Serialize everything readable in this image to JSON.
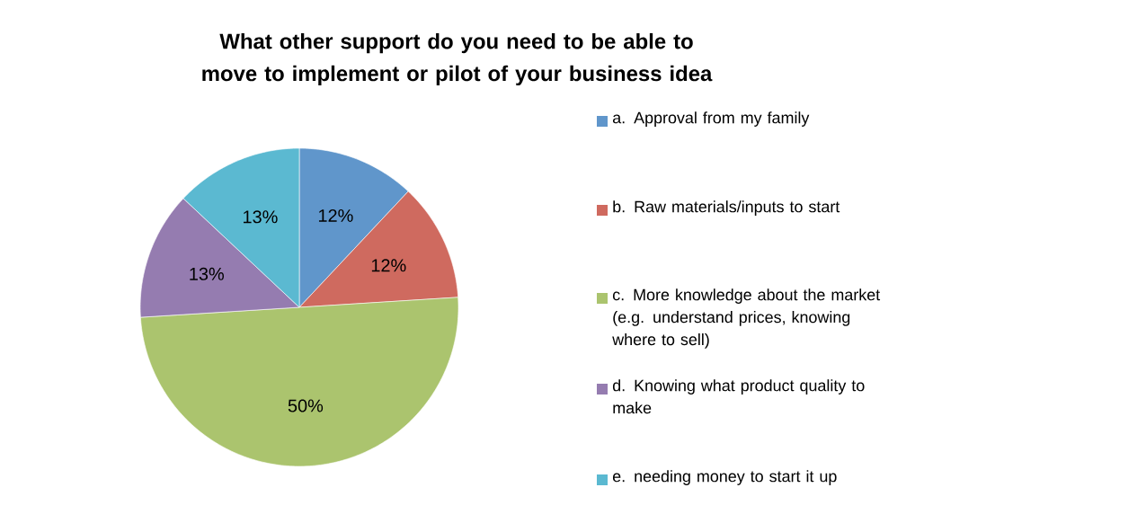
{
  "chart_data": {
    "type": "pie",
    "title": "What other support do you need to be able to move to implement or pilot of your business idea",
    "categories": [
      "a. Approval from my family",
      "b. Raw materials/inputs to start",
      "c. More knowledge about the market (e.g. understand prices, knowing where to sell)",
      "d. Knowing what product quality to make",
      "e. needing money to start it up"
    ],
    "values": [
      12,
      12,
      50,
      13,
      13
    ],
    "value_labels": [
      "12%",
      "12%",
      "50%",
      "13%",
      "13%"
    ],
    "colors": [
      "#6096CB",
      "#CF6A5F",
      "#ABC46E",
      "#957CB0",
      "#5BB9D1"
    ],
    "legend": "right"
  }
}
